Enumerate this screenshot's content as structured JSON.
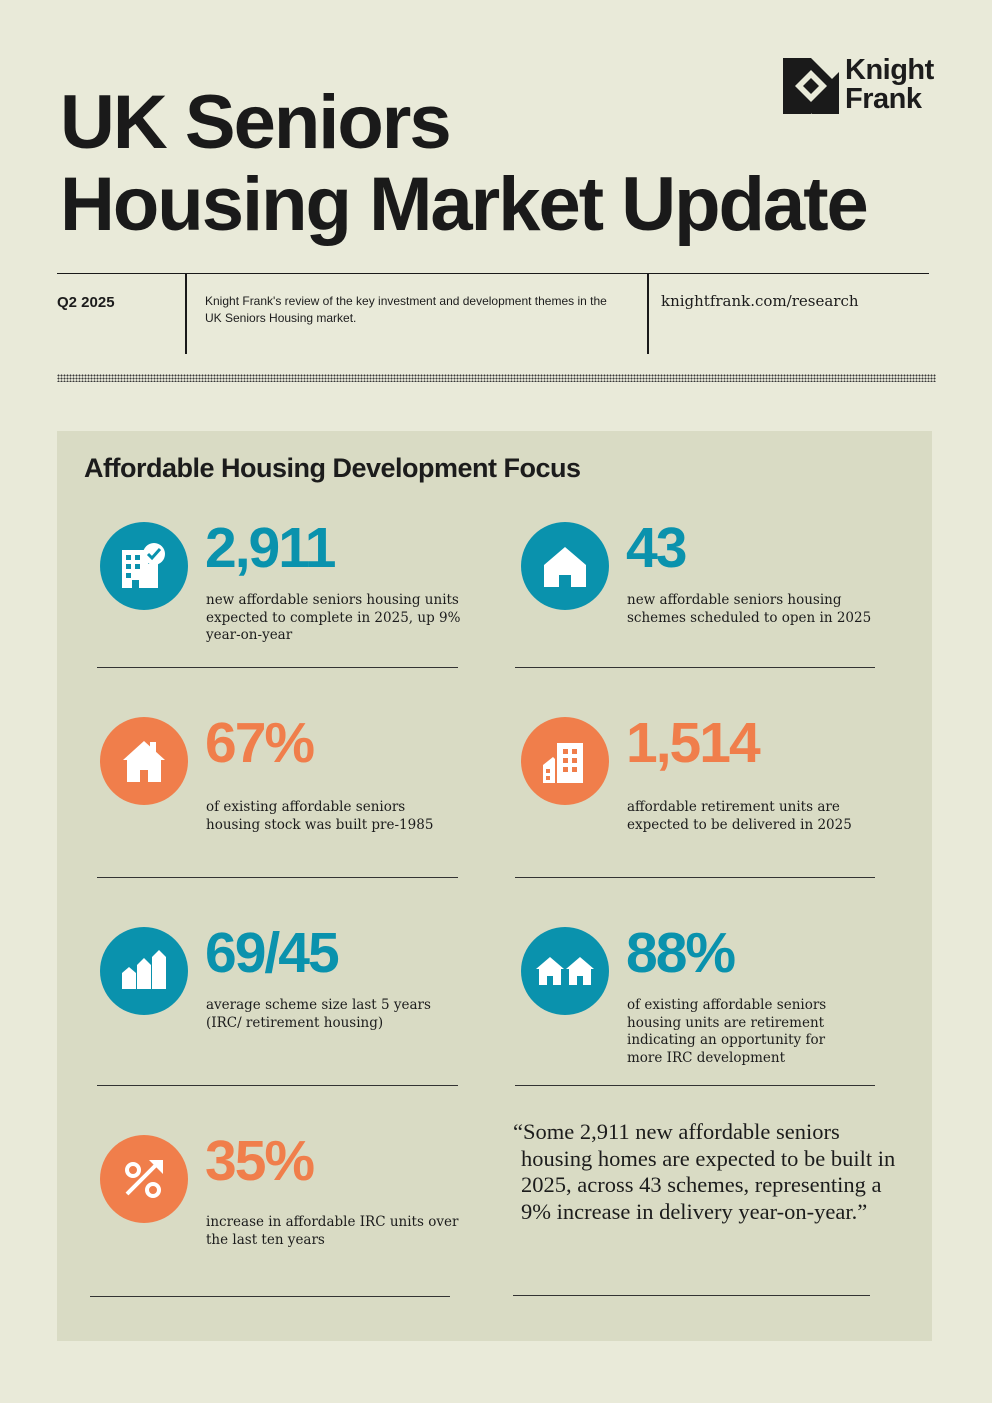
{
  "header": {
    "title_line1": "UK Seniors",
    "title_line2": "Housing Market Update",
    "logo_line1": "Knight",
    "logo_line2": "Frank"
  },
  "infobar": {
    "quarter": "Q2 2025",
    "description": "Knight Frank's review of the key investment and development themes in the UK Seniors Housing market.",
    "url": "knightfrank.com/research"
  },
  "section": {
    "heading": "Affordable Housing Development Focus",
    "stats": [
      {
        "value": "2,911",
        "desc": "new affordable seniors housing units expected to complete in 2025, up 9% year-on-year",
        "color": "#0a92ad",
        "icon": "building-check-icon"
      },
      {
        "value": "43",
        "desc": "new affordable seniors housing schemes scheduled to open in 2025",
        "color": "#0a92ad",
        "icon": "house-icon"
      },
      {
        "value": "67%",
        "desc": "of existing affordable seniors housing stock was built pre-1985",
        "color": "#f07e4b",
        "icon": "old-house-icon"
      },
      {
        "value": "1,514",
        "desc": "affordable retirement units are expected to be delivered in 2025",
        "color": "#f07e4b",
        "icon": "apartment-block-icon"
      },
      {
        "value": "69/45",
        "desc": "average scheme size last 5 years (IRC/ retirement housing)",
        "color": "#0a92ad",
        "icon": "bar-buildings-icon"
      },
      {
        "value": "88%",
        "desc": "of existing affordable seniors housing units are retirement indicating an opportunity for more IRC development",
        "color": "#0a92ad",
        "icon": "two-houses-icon"
      },
      {
        "value": "35%",
        "desc": "increase in affordable IRC units over the last ten years",
        "color": "#f07e4b",
        "icon": "percent-arrow-icon"
      }
    ],
    "quote": "“Some 2,911 new affordable seniors housing homes are expected to be built in 2025, across 43 schemes, representing a 9% increase in delivery year-on-year.”"
  }
}
